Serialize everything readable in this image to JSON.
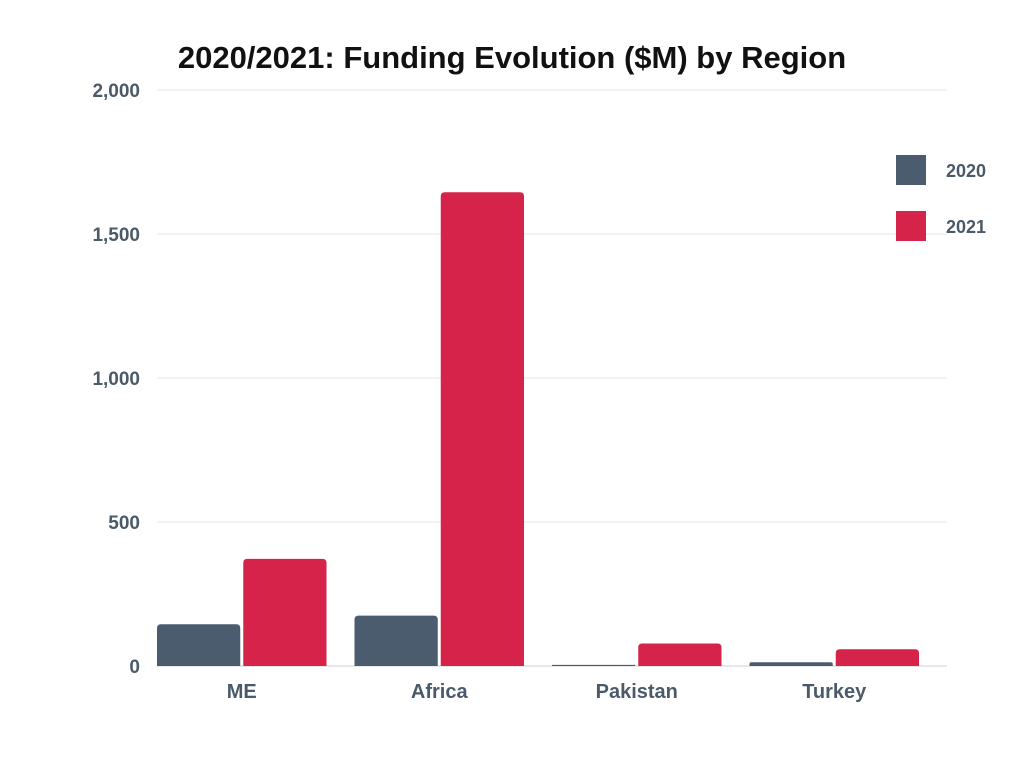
{
  "chart_data": {
    "type": "bar",
    "title": "2020/2021: Funding Evolution ($M) by Region",
    "xlabel": "",
    "ylabel": "",
    "categories": [
      "ME",
      "Africa",
      "Pakistan",
      "Turkey"
    ],
    "series": [
      {
        "name": "2020",
        "color": "#4b5c6e",
        "values": [
          145,
          175,
          4,
          13
        ]
      },
      {
        "name": "2021",
        "color": "#d6234a",
        "values": [
          372,
          1645,
          78,
          58
        ]
      }
    ],
    "ylim": [
      0,
      2000
    ],
    "yticks": [
      0,
      500,
      1000,
      1500,
      2000
    ],
    "ytick_labels": [
      "0",
      "500",
      "1,000",
      "1,500",
      "2,000"
    ],
    "grid": true,
    "legend_position": "top-right"
  }
}
